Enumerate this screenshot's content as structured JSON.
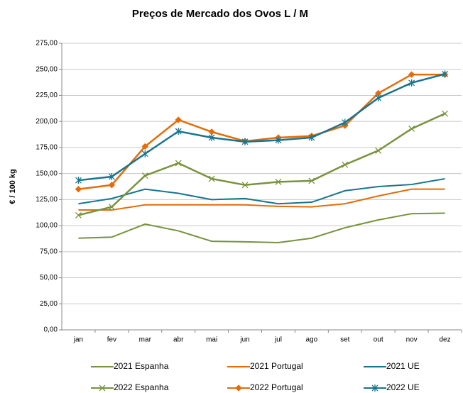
{
  "chart_data": {
    "type": "line",
    "title": "Preços de Mercado dos Ovos L / M",
    "y_label": "€ / 100 kg",
    "categories": [
      "jan",
      "fev",
      "mar",
      "abr",
      "mai",
      "jun",
      "jul",
      "ago",
      "set",
      "out",
      "nov",
      "dez"
    ],
    "ylim": [
      0,
      275
    ],
    "yticks": [
      {
        "value": 0,
        "label": "0,00"
      },
      {
        "value": 25,
        "label": "25,00"
      },
      {
        "value": 50,
        "label": "50,00"
      },
      {
        "value": 75,
        "label": "75,00"
      },
      {
        "value": 100,
        "label": "100,00"
      },
      {
        "value": 125,
        "label": "125,00"
      },
      {
        "value": 150,
        "label": "150,00"
      },
      {
        "value": 175,
        "label": "175,00"
      },
      {
        "value": 200,
        "label": "200,00"
      },
      {
        "value": 225,
        "label": "225,00"
      },
      {
        "value": 250,
        "label": "250,00"
      },
      {
        "value": 275,
        "label": "275,00"
      }
    ],
    "grid": true,
    "series": [
      {
        "name": "2021 Espanha",
        "color": "#77933c",
        "marker": "none",
        "values": [
          88,
          89,
          101.5,
          95,
          85,
          84.5,
          83.7,
          88,
          98,
          105.5,
          111.5,
          112
        ]
      },
      {
        "name": "2021 Portugal",
        "color": "#e46c0a",
        "marker": "none",
        "values": [
          115,
          115,
          120,
          120,
          120,
          120,
          118.5,
          118,
          121,
          128.5,
          135,
          135
        ]
      },
      {
        "name": "2021 UE",
        "color": "#17758f",
        "marker": "none",
        "values": [
          121,
          126,
          135,
          131,
          125,
          126,
          121,
          122.5,
          133.5,
          137.5,
          139.5,
          145
        ]
      },
      {
        "name": "2022 Espanha",
        "color": "#77933c",
        "marker": "x",
        "values": [
          110,
          118,
          148,
          160,
          145,
          139,
          142,
          143,
          158.5,
          172,
          193,
          207.5
        ]
      },
      {
        "name": "2022 Portugal",
        "color": "#e46c0a",
        "marker": "diamond",
        "values": [
          135,
          139,
          176,
          201.5,
          190,
          181,
          184.5,
          186,
          196,
          227,
          245,
          245
        ]
      },
      {
        "name": "2022 UE",
        "color": "#17758f",
        "marker": "star",
        "values": [
          143.5,
          147,
          169,
          190.5,
          184.5,
          180.5,
          182,
          184.5,
          199,
          222.5,
          237,
          245.5
        ]
      }
    ]
  }
}
